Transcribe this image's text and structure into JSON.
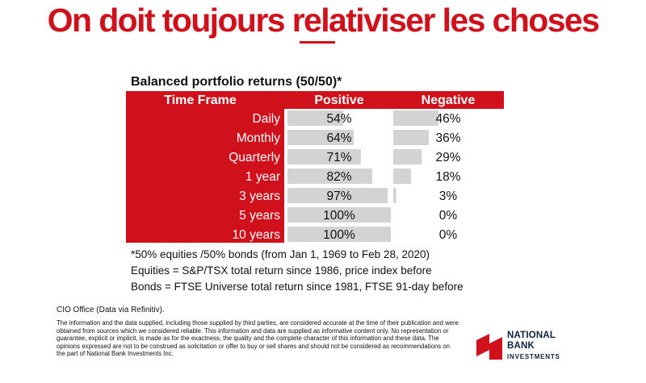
{
  "slide": {
    "title": "On doit toujours relativiser les choses"
  },
  "colors": {
    "accent_red": "#d0111b",
    "bar_gray": "#d3d3d3",
    "text_dark": "#111111",
    "logo_navy": "#0b2240"
  },
  "chart_data": {
    "type": "table",
    "title": "Balanced portfolio returns (50/50)*",
    "header": [
      "Time Frame",
      "Positive",
      "Negative"
    ],
    "categories": [
      "Daily",
      "Monthly",
      "Quarterly",
      "1 year",
      "3 years",
      "5 years",
      "10 years"
    ],
    "series": [
      {
        "name": "Positive",
        "values": [
          54,
          64,
          71,
          82,
          97,
          100,
          100
        ],
        "labels": [
          "54%",
          "64%",
          "71%",
          "82%",
          "97%",
          "100%",
          "100%"
        ]
      },
      {
        "name": "Negative",
        "values": [
          46,
          36,
          29,
          18,
          3,
          0,
          0
        ],
        "labels": [
          "46%",
          "36%",
          "29%",
          "18%",
          "3%",
          "0%",
          "0%"
        ]
      }
    ],
    "ylim": [
      0,
      100
    ]
  },
  "notes": [
    "*50% equities /50% bonds (from Jan 1, 1969 to Feb 28, 2020)",
    "Equities = S&P/TSX total return since 1986, price index before",
    "Bonds = FTSE Universe total return since 1981, FTSE 91-day before"
  ],
  "footer": {
    "source": "CIO Office (Data via Refinitiv).",
    "disclaimer": "The information and the data supplied, including those supplied by third parties, are considered accurate at the time of their publication and were obtained from sources which we considered reliable. This information and data are supplied as informative content only. No representation or guarantee, explicit or implicit, is made as for the exactness, the quality and the complete character of this information and these data. The opinions expressed are not to be construed as solicitation or offer to buy or sell shares and should not be considered as recommendations on the part of National Bank Investments Inc."
  },
  "logo": {
    "line1": "NATIONAL",
    "line2": "BANK",
    "line3": "INVESTMENTS",
    "icon": "national-bank-logo-mark"
  }
}
